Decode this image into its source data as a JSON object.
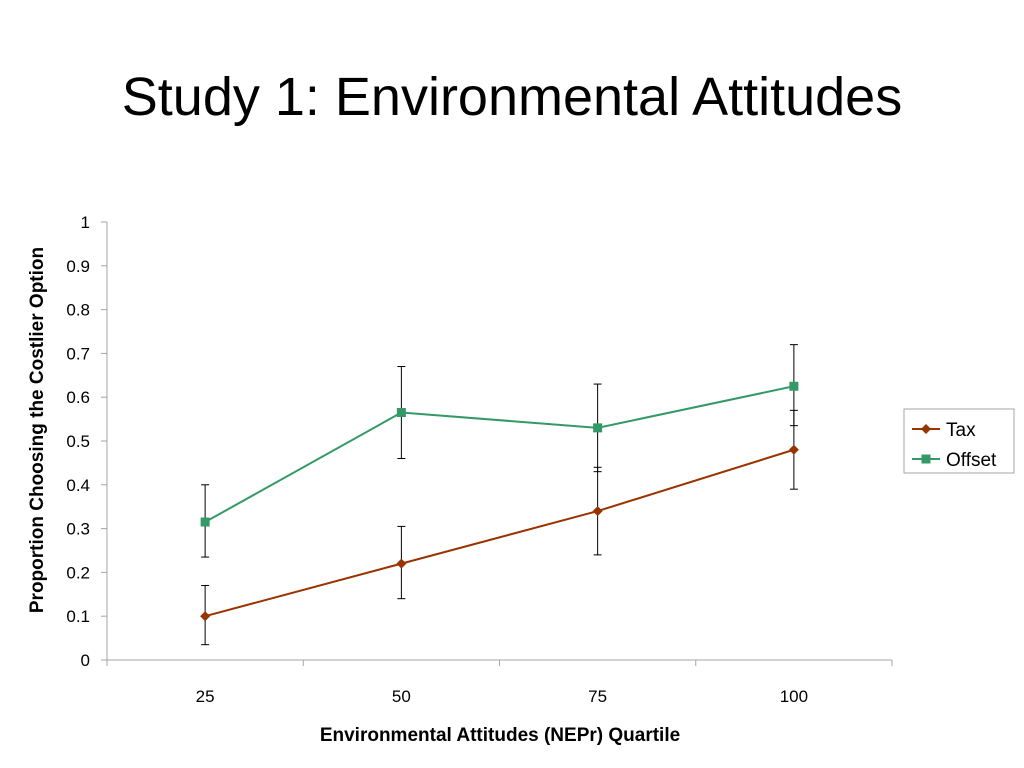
{
  "slide": {
    "title": "Study 1: Environmental Attitudes"
  },
  "chart_data": {
    "type": "line",
    "title": "",
    "xlabel": "Environmental Attitudes (NEPr) Quartile",
    "ylabel": "Proportion Choosing the Costlier Option",
    "x": [
      "25",
      "50",
      "75",
      "100"
    ],
    "ylim": [
      0,
      1
    ],
    "yticks": [
      "0",
      "0.1",
      "0.2",
      "0.3",
      "0.4",
      "0.5",
      "0.6",
      "0.7",
      "0.8",
      "0.9",
      "1"
    ],
    "grid": false,
    "legend": "right",
    "series": [
      {
        "name": "Tax",
        "color": "#993300",
        "marker": "diamond",
        "values": [
          0.1,
          0.22,
          0.34,
          0.48
        ],
        "error_low": [
          0.035,
          0.14,
          0.24,
          0.39
        ],
        "error_high": [
          0.17,
          0.305,
          0.44,
          0.57
        ]
      },
      {
        "name": "Offset",
        "color": "#339966",
        "marker": "square",
        "values": [
          0.315,
          0.565,
          0.53,
          0.625
        ],
        "error_low": [
          0.235,
          0.46,
          0.43,
          0.535
        ],
        "error_high": [
          0.4,
          0.67,
          0.63,
          0.72
        ]
      }
    ]
  }
}
